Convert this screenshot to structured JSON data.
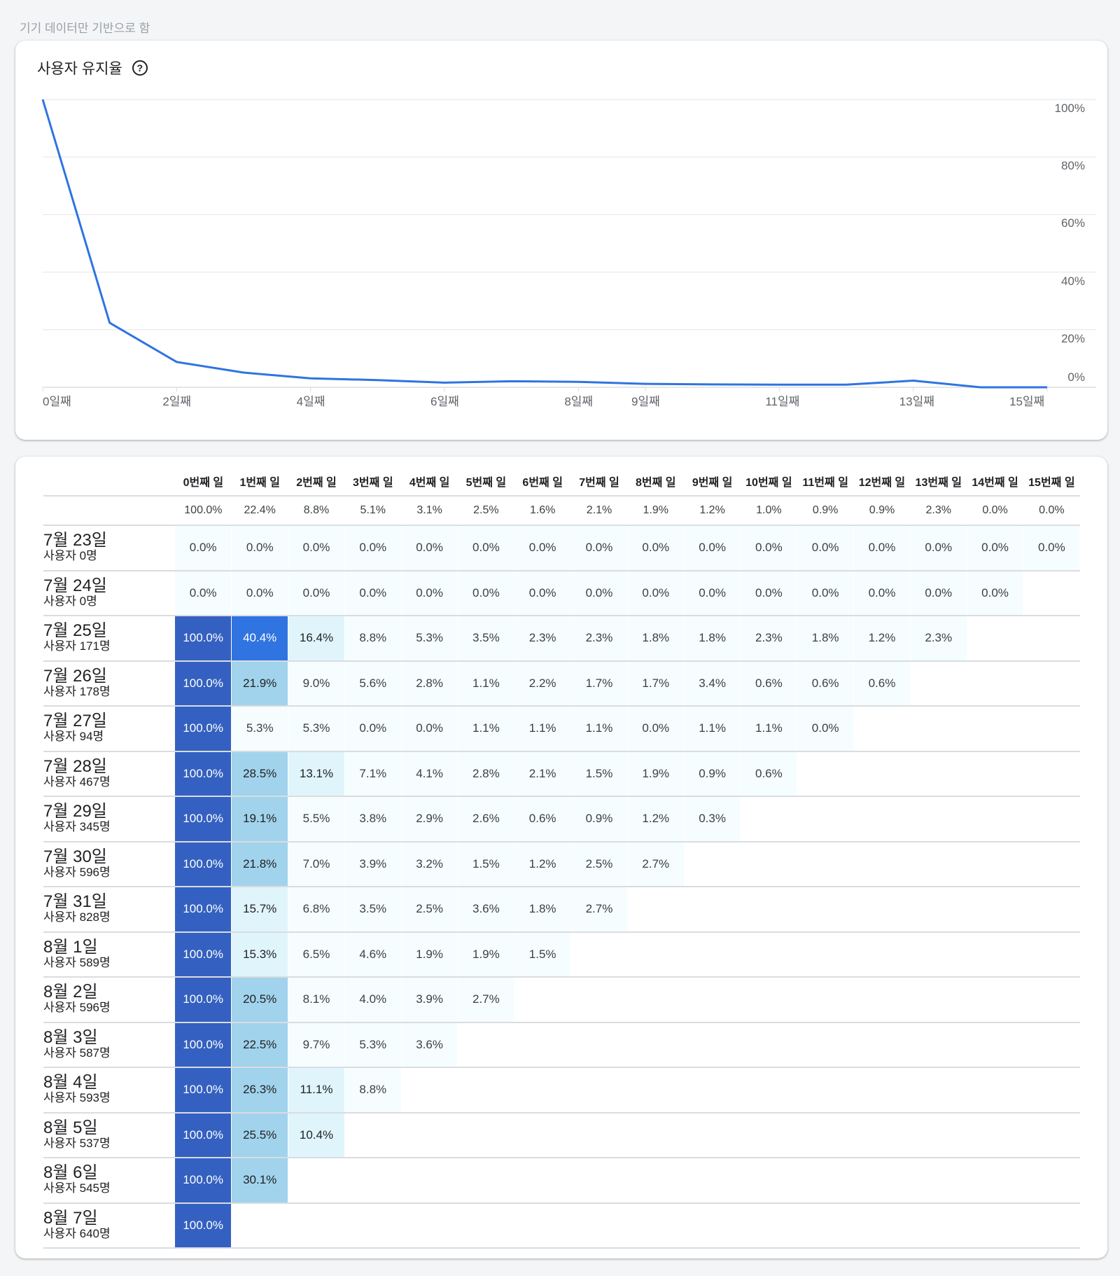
{
  "page_note": "기기 데이터만 기반으로 함",
  "chart_card": {
    "title": "사용자 유지율",
    "help_icon": "help-circle-icon",
    "line_color": "#2f74e0"
  },
  "chart_data": {
    "type": "line",
    "title": "사용자 유지율",
    "x": [
      0,
      1,
      2,
      3,
      4,
      5,
      6,
      7,
      8,
      9,
      10,
      11,
      12,
      13,
      14,
      15
    ],
    "x_tick_labels": [
      "0일째",
      "2일째",
      "4일째",
      "6일째",
      "8일째",
      "9일째",
      "11일째",
      "13일째",
      "15일째"
    ],
    "x_tick_positions": [
      0,
      2,
      4,
      6,
      8,
      9,
      11,
      13,
      15
    ],
    "series": [
      {
        "name": "유지율",
        "values": [
          100.0,
          22.4,
          8.8,
          5.1,
          3.1,
          2.5,
          1.6,
          2.1,
          1.9,
          1.2,
          1.0,
          0.9,
          0.9,
          2.3,
          0.0,
          0.0
        ]
      }
    ],
    "y_tick_labels": [
      "100%",
      "80%",
      "60%",
      "40%",
      "20%",
      "0%"
    ],
    "ylim": [
      0,
      100
    ],
    "xlabel": "",
    "ylabel": "",
    "grid": true,
    "y_axis_position": "right"
  },
  "table": {
    "headers": [
      "0번째 일",
      "1번째 일",
      "2번째 일",
      "3번째 일",
      "4번째 일",
      "5번째 일",
      "6번째 일",
      "7번째 일",
      "8번째 일",
      "9번째 일",
      "10번째 일",
      "11번째 일",
      "12번째 일",
      "13번째 일",
      "14번째 일",
      "15번째 일"
    ],
    "averages": [
      "100.0%",
      "22.4%",
      "8.8%",
      "5.1%",
      "3.1%",
      "2.5%",
      "1.6%",
      "2.1%",
      "1.9%",
      "1.2%",
      "1.0%",
      "0.9%",
      "0.9%",
      "2.3%",
      "0.0%",
      "0.0%"
    ],
    "colors": {
      "c100": "#3461c1",
      "c40": "#2f74e0",
      "c20": "#a1d3ec",
      "c10": "#e0f5fb",
      "c0": "#f5fdff"
    },
    "rows": [
      {
        "date": "7월 23일",
        "users": "사용자 0명",
        "values": [
          "0.0%",
          "0.0%",
          "0.0%",
          "0.0%",
          "0.0%",
          "0.0%",
          "0.0%",
          "0.0%",
          "0.0%",
          "0.0%",
          "0.0%",
          "0.0%",
          "0.0%",
          "0.0%",
          "0.0%",
          "0.0%"
        ]
      },
      {
        "date": "7월 24일",
        "users": "사용자 0명",
        "values": [
          "0.0%",
          "0.0%",
          "0.0%",
          "0.0%",
          "0.0%",
          "0.0%",
          "0.0%",
          "0.0%",
          "0.0%",
          "0.0%",
          "0.0%",
          "0.0%",
          "0.0%",
          "0.0%",
          "0.0%"
        ]
      },
      {
        "date": "7월 25일",
        "users": "사용자 171명",
        "values": [
          "100.0%",
          "40.4%",
          "16.4%",
          "8.8%",
          "5.3%",
          "3.5%",
          "2.3%",
          "2.3%",
          "1.8%",
          "1.8%",
          "2.3%",
          "1.8%",
          "1.2%",
          "2.3%"
        ]
      },
      {
        "date": "7월 26일",
        "users": "사용자 178명",
        "values": [
          "100.0%",
          "21.9%",
          "9.0%",
          "5.6%",
          "2.8%",
          "1.1%",
          "2.2%",
          "1.7%",
          "1.7%",
          "3.4%",
          "0.6%",
          "0.6%",
          "0.6%"
        ]
      },
      {
        "date": "7월 27일",
        "users": "사용자 94명",
        "values": [
          "100.0%",
          "5.3%",
          "5.3%",
          "0.0%",
          "0.0%",
          "1.1%",
          "1.1%",
          "1.1%",
          "0.0%",
          "1.1%",
          "1.1%",
          "0.0%"
        ]
      },
      {
        "date": "7월 28일",
        "users": "사용자 467명",
        "values": [
          "100.0%",
          "28.5%",
          "13.1%",
          "7.1%",
          "4.1%",
          "2.8%",
          "2.1%",
          "1.5%",
          "1.9%",
          "0.9%",
          "0.6%"
        ]
      },
      {
        "date": "7월 29일",
        "users": "사용자 345명",
        "values": [
          "100.0%",
          "19.1%",
          "5.5%",
          "3.8%",
          "2.9%",
          "2.6%",
          "0.6%",
          "0.9%",
          "1.2%",
          "0.3%"
        ]
      },
      {
        "date": "7월 30일",
        "users": "사용자 596명",
        "values": [
          "100.0%",
          "21.8%",
          "7.0%",
          "3.9%",
          "3.2%",
          "1.5%",
          "1.2%",
          "2.5%",
          "2.7%"
        ]
      },
      {
        "date": "7월 31일",
        "users": "사용자 828명",
        "values": [
          "100.0%",
          "15.7%",
          "6.8%",
          "3.5%",
          "2.5%",
          "3.6%",
          "1.8%",
          "2.7%"
        ]
      },
      {
        "date": "8월 1일",
        "users": "사용자 589명",
        "values": [
          "100.0%",
          "15.3%",
          "6.5%",
          "4.6%",
          "1.9%",
          "1.9%",
          "1.5%"
        ]
      },
      {
        "date": "8월 2일",
        "users": "사용자 596명",
        "values": [
          "100.0%",
          "20.5%",
          "8.1%",
          "4.0%",
          "3.9%",
          "2.7%"
        ]
      },
      {
        "date": "8월 3일",
        "users": "사용자 587명",
        "values": [
          "100.0%",
          "22.5%",
          "9.7%",
          "5.3%",
          "3.6%"
        ]
      },
      {
        "date": "8월 4일",
        "users": "사용자 593명",
        "values": [
          "100.0%",
          "26.3%",
          "11.1%",
          "8.8%"
        ]
      },
      {
        "date": "8월 5일",
        "users": "사용자 537명",
        "values": [
          "100.0%",
          "25.5%",
          "10.4%"
        ]
      },
      {
        "date": "8월 6일",
        "users": "사용자 545명",
        "values": [
          "100.0%",
          "30.1%"
        ]
      },
      {
        "date": "8월 7일",
        "users": "사용자 640명",
        "values": [
          "100.0%"
        ]
      }
    ]
  }
}
